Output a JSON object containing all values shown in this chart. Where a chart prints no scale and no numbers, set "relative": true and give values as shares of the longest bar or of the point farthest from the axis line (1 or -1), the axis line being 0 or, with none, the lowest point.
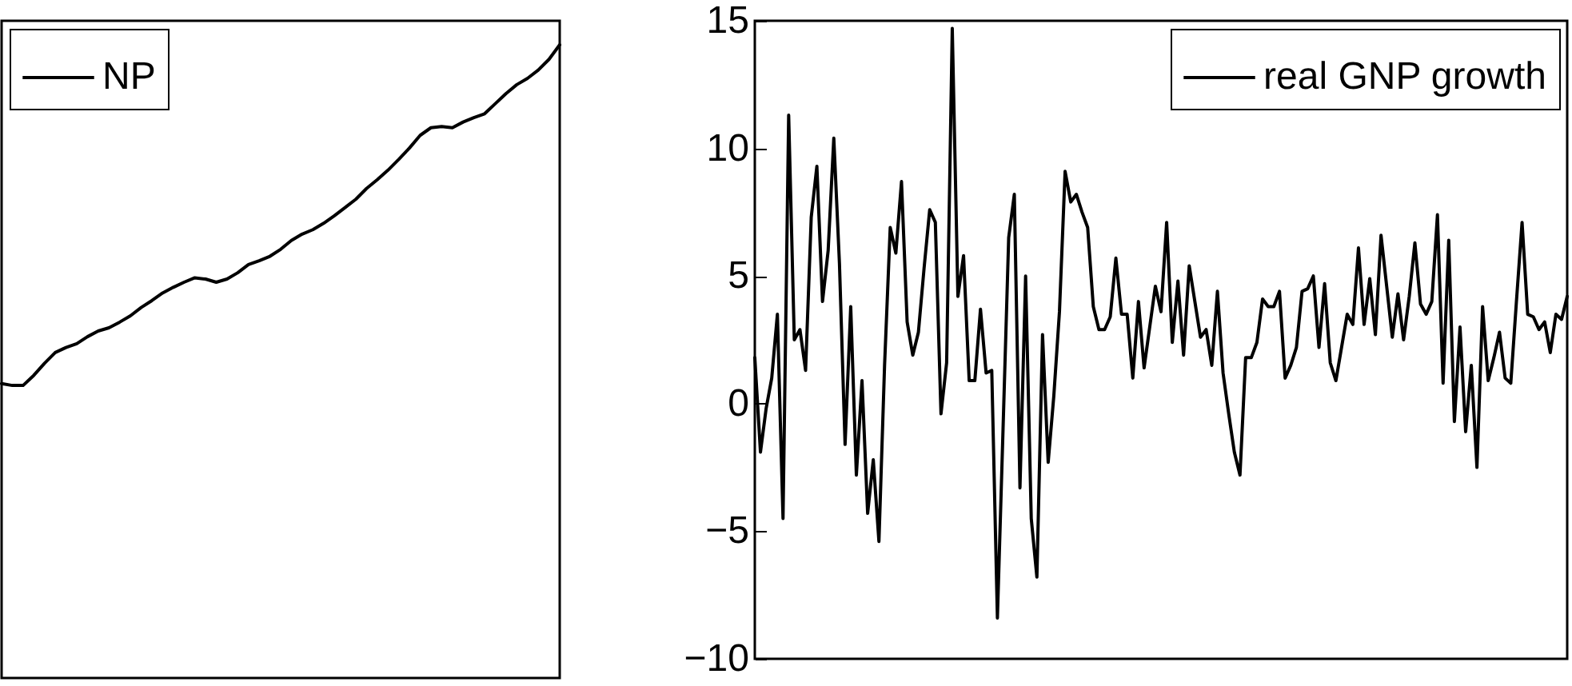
{
  "chart_data": [
    {
      "type": "line",
      "relative": true,
      "legend": "top left",
      "tick_labels": false,
      "categories": [
        null,
        null,
        null,
        null,
        null,
        null,
        null,
        null,
        null,
        null,
        null,
        null,
        null,
        null,
        null,
        null,
        null,
        null,
        null,
        null,
        null,
        null,
        null,
        null,
        null,
        null,
        null,
        null,
        null,
        null,
        null,
        null,
        null,
        null,
        null,
        null,
        null,
        null,
        null,
        null,
        null,
        null,
        null,
        null,
        null,
        null,
        null,
        null,
        null,
        null,
        null,
        null,
        null
      ],
      "series": [
        {
          "name": "NP",
          "color": "#000000",
          "values": [
            0.465,
            0.462,
            0.462,
            0.478,
            0.497,
            0.514,
            0.522,
            0.528,
            0.539,
            0.548,
            0.553,
            0.562,
            0.572,
            0.585,
            0.596,
            0.608,
            0.617,
            0.625,
            0.632,
            0.63,
            0.625,
            0.63,
            0.64,
            0.653,
            0.659,
            0.666,
            0.677,
            0.691,
            0.701,
            0.708,
            0.718,
            0.73,
            0.743,
            0.756,
            0.773,
            0.787,
            0.802,
            0.819,
            0.837,
            0.857,
            0.869,
            0.871,
            0.869,
            0.878,
            0.885,
            0.891,
            0.907,
            0.923,
            0.937,
            0.947,
            0.96,
            0.977,
            1
          ]
        }
      ]
    },
    {
      "type": "line",
      "legend": "top right",
      "tick_labels": "y",
      "ylim": [
        -10,
        15
      ],
      "yticks": [
        -10,
        -5,
        0,
        5,
        10,
        15
      ],
      "categories": [
        null,
        null,
        null,
        null,
        null,
        null,
        null,
        null,
        null,
        null,
        null,
        null,
        null,
        null,
        null,
        null,
        null,
        null,
        null,
        null,
        null,
        null,
        null,
        null,
        null,
        null,
        null,
        null,
        null,
        null,
        null,
        null,
        null,
        null,
        null,
        null,
        null,
        null,
        null,
        null,
        null,
        null,
        null,
        null,
        null,
        null,
        null,
        null,
        null,
        null,
        null,
        null,
        null,
        null,
        null,
        null,
        null,
        null,
        null,
        null,
        null,
        null,
        null,
        null,
        null,
        null,
        null,
        null,
        null,
        null,
        null,
        null,
        null,
        null,
        null,
        null,
        null,
        null,
        null,
        null,
        null,
        null,
        null,
        null,
        null,
        null,
        null,
        null,
        null,
        null,
        null,
        null,
        null,
        null,
        null,
        null,
        null,
        null,
        null,
        null,
        null,
        null,
        null,
        null,
        null,
        null,
        null,
        null,
        null,
        null,
        null,
        null,
        null,
        null,
        null,
        null,
        null,
        null,
        null,
        null,
        null,
        null,
        null,
        null,
        null,
        null,
        null,
        null,
        null,
        null,
        null,
        null,
        null,
        null,
        null,
        null,
        null,
        null,
        null,
        null,
        null,
        null,
        null,
        null,
        null
      ],
      "series": [
        {
          "name": "real GNP growth",
          "color": "#000000",
          "values": [
            1.8,
            -1.9,
            -0.2,
            1.0,
            3.5,
            -4.5,
            11.3,
            2.5,
            2.9,
            1.3,
            7.3,
            9.3,
            4.0,
            6.0,
            10.4,
            5.5,
            -1.6,
            3.8,
            -2.8,
            0.9,
            -4.3,
            -2.2,
            -5.4,
            1.5,
            6.9,
            5.9,
            8.7,
            3.2,
            1.9,
            2.8,
            5.3,
            7.6,
            7.1,
            -0.4,
            1.6,
            14.7,
            4.2,
            5.8,
            0.9,
            0.9,
            3.7,
            1.2,
            1.3,
            -8.4,
            -1.0,
            6.5,
            8.2,
            -3.3,
            5.0,
            -4.5,
            -6.8,
            2.7,
            -2.3,
            0.3,
            3.6,
            9.1,
            7.9,
            8.2,
            7.5,
            6.9,
            3.8,
            2.9,
            2.9,
            3.4,
            5.7,
            3.5,
            3.5,
            1.0,
            4.0,
            1.4,
            3.0,
            4.6,
            3.6,
            7.1,
            2.4,
            4.8,
            1.9,
            5.4,
            4.0,
            2.6,
            2.9,
            1.5,
            4.4,
            1.2,
            -0.4,
            -1.9,
            -2.8,
            1.8,
            1.8,
            2.4,
            4.1,
            3.8,
            3.8,
            4.4,
            1.0,
            1.5,
            2.2,
            4.4,
            4.5,
            5.0,
            2.2,
            4.7,
            1.6,
            0.9,
            2.2,
            3.5,
            3.1,
            6.1,
            3.1,
            4.9,
            2.7,
            6.6,
            4.6,
            2.6,
            4.3,
            2.5,
            4.2,
            6.3,
            3.9,
            3.5,
            4.0,
            7.4,
            0.8,
            6.4,
            -0.7,
            3.0,
            -1.1,
            1.5,
            -2.5,
            3.8,
            0.9,
            1.8,
            2.8,
            1.0,
            0.8,
            4.0,
            7.1,
            3.5,
            3.4,
            2.9,
            3.2,
            2.0,
            3.5,
            3.3,
            4.2
          ]
        }
      ]
    }
  ]
}
